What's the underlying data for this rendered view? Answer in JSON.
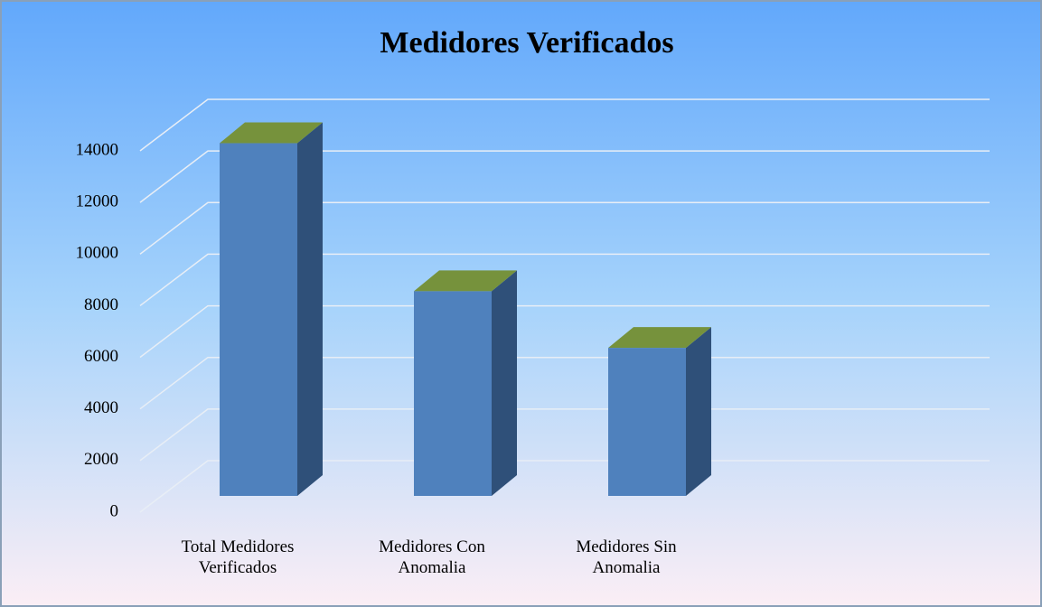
{
  "chart_data": {
    "type": "bar3d",
    "title": "Medidores Verificados",
    "categories": [
      "Total Medidores Verificados",
      "Medidores Con Anomalia",
      "Medidores Sin Anomalia"
    ],
    "values": [
      13700,
      7950,
      5750
    ],
    "color": "#4f81bd",
    "top_color": "#76923c",
    "side_color": "#2f5079",
    "ylim": [
      0,
      14000
    ],
    "yticks": [
      0,
      2000,
      4000,
      6000,
      8000,
      10000,
      12000,
      14000
    ],
    "grid": true
  }
}
